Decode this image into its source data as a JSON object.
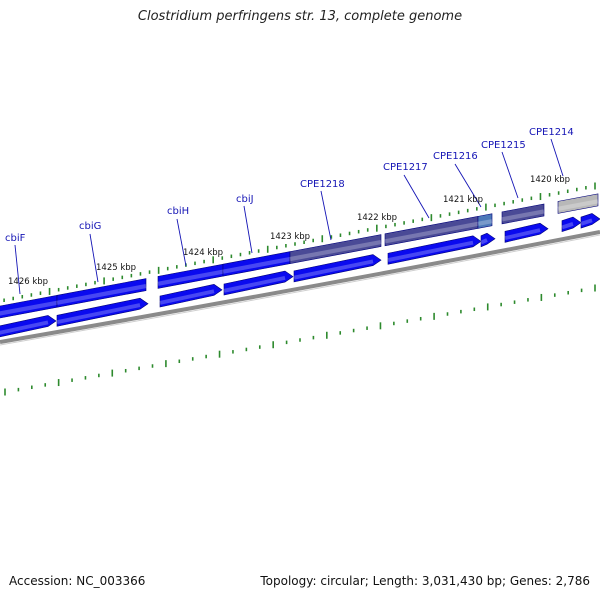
{
  "title": "Clostridium perfringens str. 13, complete genome",
  "footer": {
    "accession": "Accession: NC_003366",
    "summary": "Topology: circular; Length: 3,031,430 bp; Genes: 2,786"
  },
  "kbp_labels": [
    "1426 kbp",
    "1425 kbp",
    "1424 kbp",
    "1423 kbp",
    "1422 kbp",
    "1421 kbp",
    "1420 kbp"
  ],
  "gene_labels": [
    "cbiF",
    "cbiG",
    "cbiH",
    "cbiJ",
    "CPE1218",
    "CPE1217",
    "CPE1216",
    "CPE1215",
    "CPE1214"
  ],
  "colors": {
    "cds": "#0a0aef",
    "cds_dark": "#0000a8",
    "gene_purple": "#4a4a96",
    "gene_gray": "#b8b8b8",
    "backbone": "#8a8a8a",
    "tick": "#2d8a2d",
    "label": "#1515b5"
  }
}
